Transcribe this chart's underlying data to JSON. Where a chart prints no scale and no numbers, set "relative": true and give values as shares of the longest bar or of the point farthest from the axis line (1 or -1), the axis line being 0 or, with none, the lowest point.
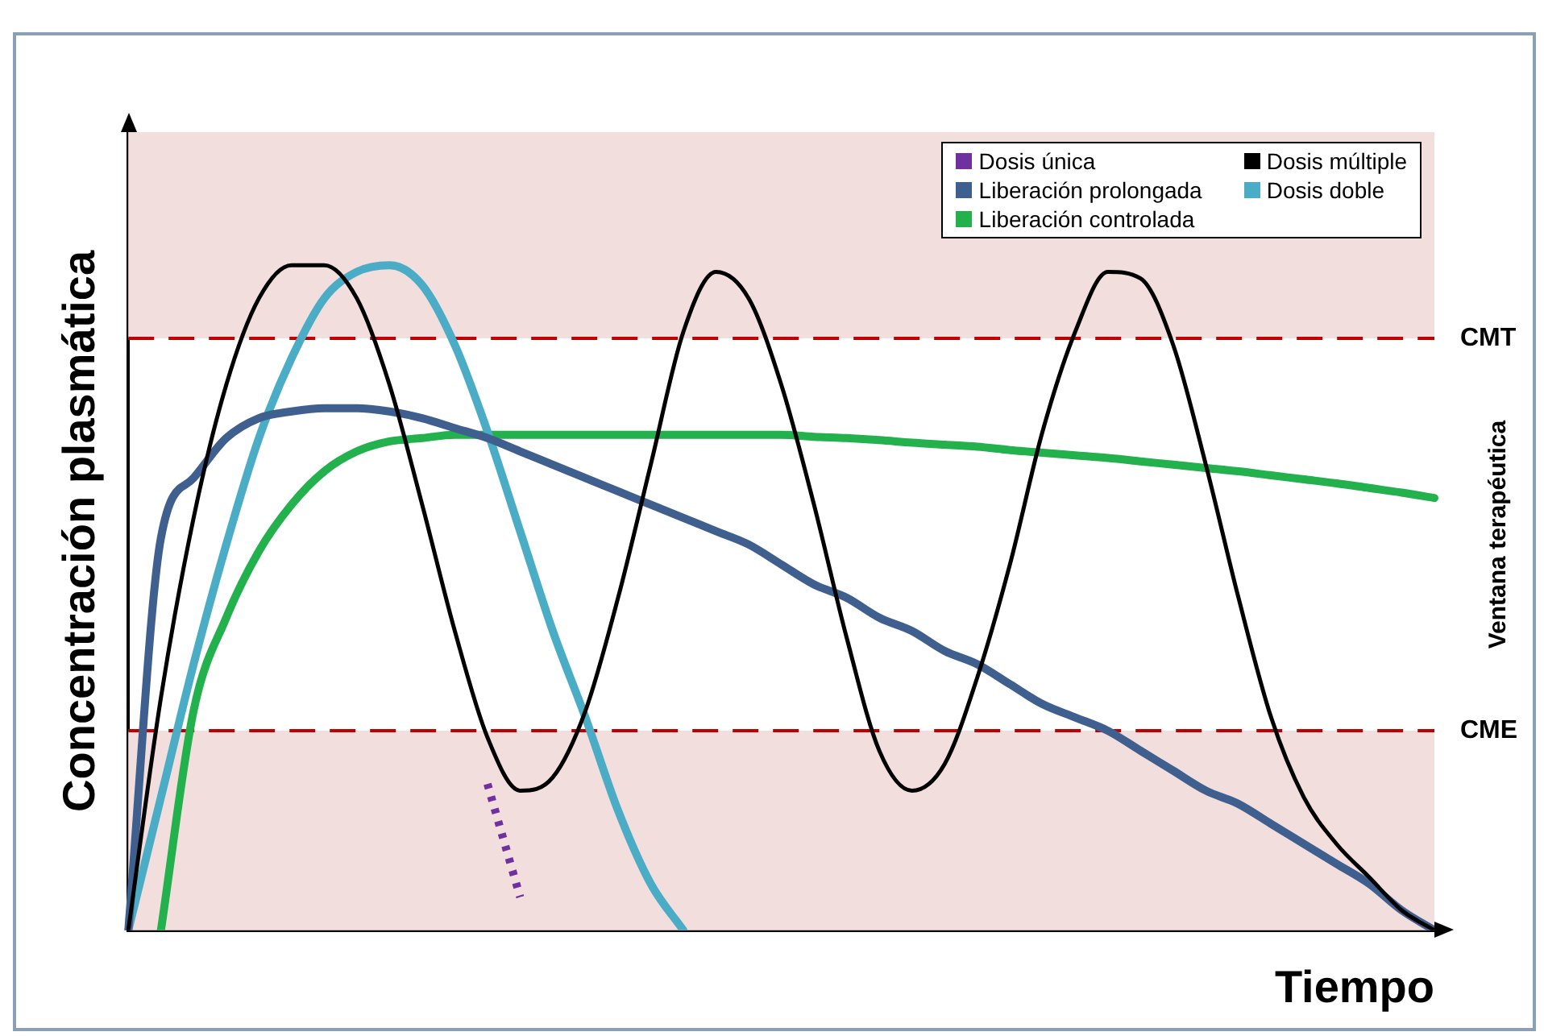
{
  "chart_data": {
    "type": "line",
    "relative": true,
    "ylabel": "Concentración plasmática",
    "xlabel": "Tiempo",
    "tick_labels": false,
    "grid": false,
    "legend": "top right",
    "marker": "none",
    "categories": [
      null,
      null,
      null,
      null,
      null,
      null,
      null,
      null,
      null,
      null,
      null,
      null,
      null,
      null,
      null,
      null,
      null,
      null,
      null,
      null,
      null,
      null,
      null,
      null,
      null,
      null,
      null,
      null,
      null,
      null,
      null,
      null,
      null,
      null,
      null,
      null,
      null,
      null,
      null,
      null,
      null
    ],
    "series": [
      {
        "name": "Dosis única",
        "color": "#7030a0",
        "line_style": "dotted",
        "values": [
          null,
          null,
          null,
          null,
          null,
          null,
          null,
          null,
          null,
          null,
          null,
          0.22,
          0.05,
          null,
          null,
          null,
          null,
          null,
          null,
          null,
          null,
          null,
          null,
          null,
          null,
          null,
          null,
          null,
          null,
          null,
          null,
          null,
          null,
          null,
          null,
          null,
          null,
          null,
          null,
          null,
          null
        ]
      },
      {
        "name": "Dosis múltiple",
        "color": "#000000",
        "values": [
          0,
          0.35,
          0.62,
          0.82,
          0.95,
          1.0,
          1.0,
          0.95,
          0.82,
          0.64,
          0.45,
          0.29,
          0.21,
          0.23,
          0.33,
          0.5,
          0.7,
          0.9,
          0.99,
          0.95,
          0.82,
          0.64,
          0.44,
          0.27,
          0.21,
          0.25,
          0.38,
          0.55,
          0.75,
          0.9,
          0.99,
          0.98,
          0.88,
          0.7,
          0.5,
          0.32,
          0.2,
          0.13,
          0.08,
          0.03,
          0
        ]
      },
      {
        "name": "Liberación prolongada",
        "color": "#3f5f8f",
        "values": [
          0,
          0.59,
          0.68,
          0.74,
          0.77,
          0.78,
          0.785,
          0.785,
          0.78,
          0.77,
          0.755,
          0.74,
          0.72,
          0.7,
          0.68,
          0.66,
          0.64,
          0.62,
          0.6,
          0.58,
          0.55,
          0.52,
          0.5,
          0.47,
          0.45,
          0.42,
          0.4,
          0.37,
          0.34,
          0.32,
          0.3,
          0.27,
          0.24,
          0.21,
          0.19,
          0.16,
          0.13,
          0.1,
          0.07,
          0.03,
          0
        ]
      },
      {
        "name": "Dosis doble",
        "color": "#4bacc6",
        "values": [
          0,
          0.2,
          0.4,
          0.58,
          0.74,
          0.86,
          0.95,
          0.99,
          1.0,
          0.97,
          0.88,
          0.75,
          0.6,
          0.45,
          0.32,
          0.18,
          0.07,
          0,
          null,
          null,
          null,
          null,
          null,
          null,
          null,
          null,
          null,
          null,
          null,
          null,
          null,
          null,
          null,
          null,
          null,
          null,
          null,
          null,
          null,
          null,
          null
        ]
      },
      {
        "name": "Liberación controlada",
        "color": "#22b14c",
        "values": [
          null,
          0,
          0.33,
          0.47,
          0.57,
          0.64,
          0.69,
          0.72,
          0.735,
          0.74,
          0.745,
          0.745,
          0.745,
          0.745,
          0.745,
          0.745,
          0.745,
          0.745,
          0.745,
          0.745,
          0.745,
          0.742,
          0.74,
          0.737,
          0.733,
          0.73,
          0.727,
          0.722,
          0.718,
          0.714,
          0.71,
          0.705,
          0.7,
          0.695,
          0.69,
          0.684,
          0.678,
          0.672,
          0.665,
          0.658,
          0.65
        ]
      }
    ],
    "ref_lines": [
      {
        "axis": "y",
        "value": 0.89,
        "label": "CMT",
        "color": "#c00000",
        "line_style": "dashed"
      },
      {
        "axis": "y",
        "value": 0.3,
        "label": "CME",
        "color": "#c00000",
        "line_style": "dashed"
      }
    ],
    "bands": [
      {
        "axis": "y",
        "from": 0.89,
        "to": 1.2,
        "color": "#f3dede"
      },
      {
        "axis": "y",
        "from": 0,
        "to": 0.3,
        "color": "#f3dede"
      }
    ],
    "annotations": [
      "Ventana terapéutica"
    ]
  }
}
